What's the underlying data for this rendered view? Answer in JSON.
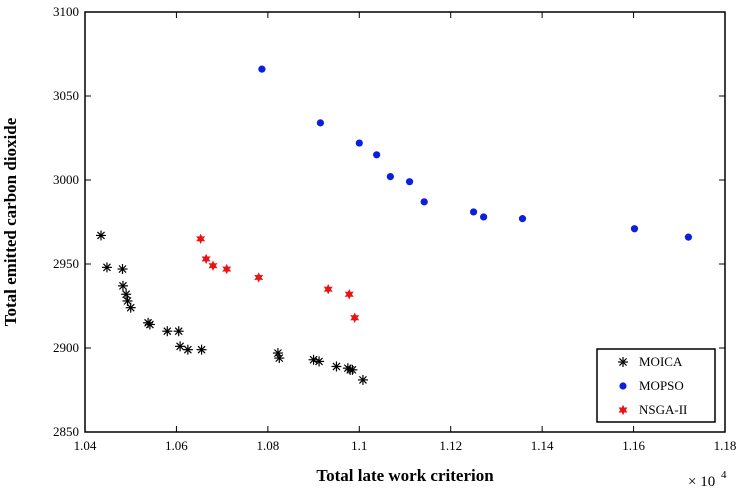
{
  "chart_data": {
    "type": "scatter",
    "title": "",
    "xlabel": "Total late work criterion",
    "ylabel": "Total emitted carbon dioxide",
    "x_multiplier_base": "× 10",
    "x_multiplier_exp": "4",
    "xlim": [
      1.04,
      1.18
    ],
    "ylim": [
      2850,
      3100
    ],
    "x_ticks": [
      1.04,
      1.06,
      1.08,
      1.1,
      1.12,
      1.14,
      1.16,
      1.18
    ],
    "x_tick_labels": [
      "1.04",
      "1.06",
      "1.08",
      "1.1",
      "1.12",
      "1.14",
      "1.16",
      "1.18"
    ],
    "y_ticks": [
      2850,
      2900,
      2950,
      3000,
      3050,
      3100
    ],
    "y_tick_labels": [
      "2850",
      "2900",
      "2950",
      "3000",
      "3050",
      "3100"
    ],
    "grid": false,
    "legend_position": "bottom-right",
    "series": [
      {
        "name": "MOICA",
        "marker": "asterisk",
        "color": "#000000",
        "points": [
          [
            1.0435,
            2967
          ],
          [
            1.0448,
            2948
          ],
          [
            1.0482,
            2947
          ],
          [
            1.0483,
            2937
          ],
          [
            1.049,
            2932
          ],
          [
            1.0493,
            2928
          ],
          [
            1.05,
            2924
          ],
          [
            1.0538,
            2915
          ],
          [
            1.0542,
            2914
          ],
          [
            1.058,
            2910
          ],
          [
            1.0605,
            2910
          ],
          [
            1.0608,
            2901
          ],
          [
            1.0625,
            2899
          ],
          [
            1.0655,
            2899
          ],
          [
            1.0822,
            2897
          ],
          [
            1.0825,
            2894
          ],
          [
            1.09,
            2893
          ],
          [
            1.0912,
            2892
          ],
          [
            1.095,
            2889
          ],
          [
            1.0975,
            2888
          ],
          [
            1.098,
            2887
          ],
          [
            1.0985,
            2887
          ],
          [
            1.1008,
            2881
          ]
        ]
      },
      {
        "name": "MOPSO",
        "marker": "circle",
        "color": "#0a1fe0",
        "points": [
          [
            1.0787,
            3066
          ],
          [
            1.0915,
            3034
          ],
          [
            1.1,
            3022
          ],
          [
            1.1038,
            3015
          ],
          [
            1.1068,
            3002
          ],
          [
            1.111,
            2999
          ],
          [
            1.1142,
            2987
          ],
          [
            1.125,
            2981
          ],
          [
            1.1272,
            2978
          ],
          [
            1.1357,
            2977
          ],
          [
            1.1602,
            2971
          ],
          [
            1.172,
            2966
          ]
        ]
      },
      {
        "name": "NSGA-II",
        "marker": "hexagram",
        "color": "#ee1111",
        "points": [
          [
            1.0653,
            2965
          ],
          [
            1.0665,
            2953
          ],
          [
            1.068,
            2949
          ],
          [
            1.071,
            2947
          ],
          [
            1.078,
            2942
          ],
          [
            1.0932,
            2935
          ],
          [
            1.0978,
            2932
          ],
          [
            1.099,
            2918
          ]
        ]
      }
    ]
  }
}
